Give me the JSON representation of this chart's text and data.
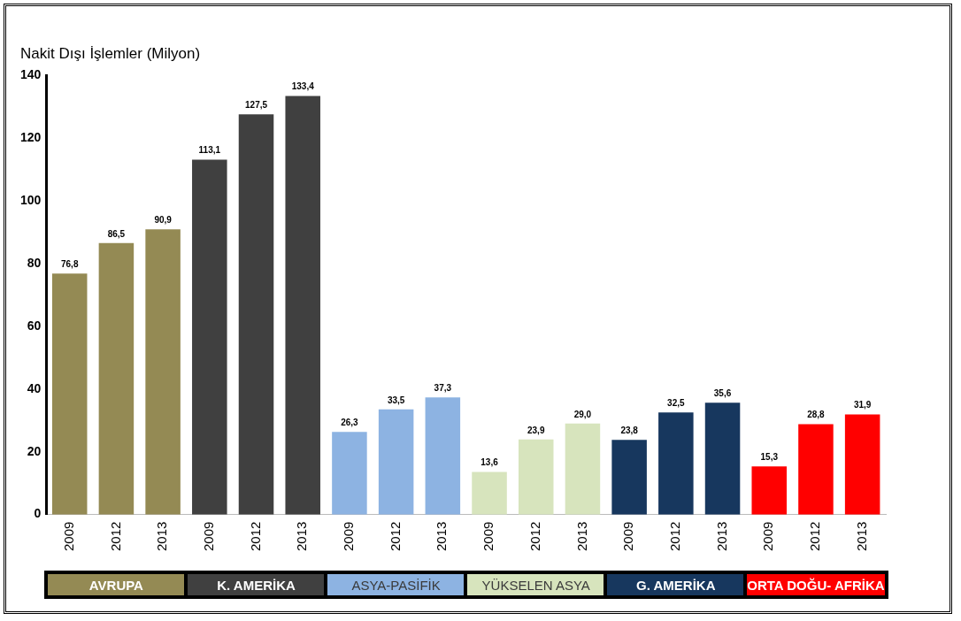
{
  "chart_data": {
    "type": "bar",
    "ylabel": "Nakit Dışı İşlemler (Milyon)",
    "categories": [
      "2009",
      "2012",
      "2013",
      "2009",
      "2012",
      "2013",
      "2009",
      "2012",
      "2013",
      "2009",
      "2012",
      "2013",
      "2009",
      "2012",
      "2013",
      "2009",
      "2012",
      "2013"
    ],
    "series": [
      {
        "name": "AVRUPA",
        "color": "#948a54",
        "values": [
          76.8,
          86.5,
          90.9,
          null,
          null,
          null,
          null,
          null,
          null,
          null,
          null,
          null,
          null,
          null,
          null,
          null,
          null,
          null
        ],
        "value_labels": [
          "76,8",
          "86,5",
          "90,9",
          null,
          null,
          null,
          null,
          null,
          null,
          null,
          null,
          null,
          null,
          null,
          null,
          null,
          null,
          null
        ]
      },
      {
        "name": "K. AMERİKA",
        "color": "#404040",
        "values": [
          null,
          null,
          null,
          113.1,
          127.5,
          133.4,
          null,
          null,
          null,
          null,
          null,
          null,
          null,
          null,
          null,
          null,
          null,
          null
        ],
        "value_labels": [
          null,
          null,
          null,
          "113,1",
          "127,5",
          "133,4",
          null,
          null,
          null,
          null,
          null,
          null,
          null,
          null,
          null,
          null,
          null,
          null
        ]
      },
      {
        "name": "ASYA-PASİFİK",
        "color": "#8db3e2",
        "values": [
          null,
          null,
          null,
          null,
          null,
          null,
          26.3,
          33.5,
          37.3,
          null,
          null,
          null,
          null,
          null,
          null,
          null,
          null,
          null
        ],
        "value_labels": [
          null,
          null,
          null,
          null,
          null,
          null,
          "26,3",
          "33,5",
          "37,3",
          null,
          null,
          null,
          null,
          null,
          null,
          null,
          null,
          null
        ]
      },
      {
        "name": "YÜKSELEN ASYA",
        "color": "#d7e4bd",
        "values": [
          null,
          null,
          null,
          null,
          null,
          null,
          null,
          null,
          null,
          13.6,
          23.9,
          29.0,
          null,
          null,
          null,
          null,
          null,
          null
        ],
        "value_labels": [
          null,
          null,
          null,
          null,
          null,
          null,
          null,
          null,
          null,
          "13,6",
          "23,9",
          "29,0",
          null,
          null,
          null,
          null,
          null,
          null
        ]
      },
      {
        "name": "G. AMERİKA",
        "color": "#17375e",
        "values": [
          null,
          null,
          null,
          null,
          null,
          null,
          null,
          null,
          null,
          null,
          null,
          null,
          23.8,
          32.5,
          35.6,
          null,
          null,
          null
        ],
        "value_labels": [
          null,
          null,
          null,
          null,
          null,
          null,
          null,
          null,
          null,
          null,
          null,
          null,
          "23,8",
          "32,5",
          "35,6",
          null,
          null,
          null
        ]
      },
      {
        "name": "ORTA DOĞU- AFRİKA",
        "color": "#ff0000",
        "values": [
          null,
          null,
          null,
          null,
          null,
          null,
          null,
          null,
          null,
          null,
          null,
          null,
          null,
          null,
          null,
          15.3,
          28.8,
          31.9
        ],
        "value_labels": [
          null,
          null,
          null,
          null,
          null,
          null,
          null,
          null,
          null,
          null,
          null,
          null,
          null,
          null,
          null,
          "15,3",
          "28,8",
          "31,9"
        ]
      }
    ],
    "ylim": [
      0,
      140
    ],
    "yticks": [
      0,
      20,
      40,
      60,
      80,
      100,
      120,
      140
    ],
    "grid": false,
    "legend": false
  }
}
